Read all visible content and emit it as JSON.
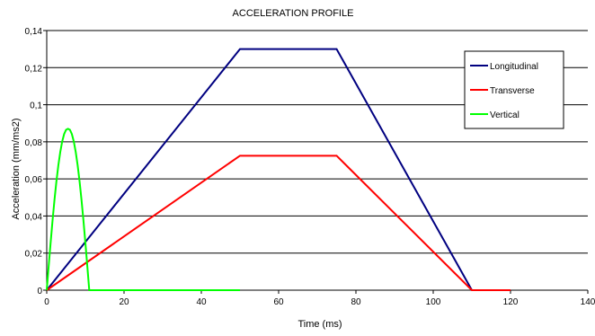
{
  "chart_data": {
    "type": "line",
    "title": "ACCELERATION PROFILE",
    "xlabel": "Time (ms)",
    "ylabel": "Acceleration (mm/ms2)",
    "xlim": [
      0,
      140
    ],
    "ylim": [
      0,
      0.14
    ],
    "xticks": [
      0,
      20,
      40,
      60,
      80,
      100,
      120,
      140
    ],
    "yticks": [
      0,
      0.02,
      0.04,
      0.06,
      0.08,
      0.1,
      0.12,
      0.14
    ],
    "x_tick_labels": [
      "0",
      "20",
      "40",
      "60",
      "80",
      "100",
      "120",
      "140"
    ],
    "y_tick_labels": [
      "0",
      "0,02",
      "0,04",
      "0,06",
      "0,08",
      "0,1",
      "0,12",
      "0,14"
    ],
    "grid": "horizontal",
    "legend_position": "top-right",
    "series": [
      {
        "name": "Longitudinal",
        "color": "#000080",
        "x": [
          0,
          50,
          75,
          110,
          120
        ],
        "y": [
          0,
          0.13,
          0.13,
          0,
          0
        ]
      },
      {
        "name": "Transverse",
        "color": "#ff0000",
        "x": [
          0,
          50,
          75,
          110,
          120
        ],
        "y": [
          0,
          0.0725,
          0.0725,
          0,
          0
        ]
      },
      {
        "name": "Vertical",
        "color": "#00ff00",
        "x": [
          0,
          0.5,
          1,
          1.5,
          2,
          2.5,
          3,
          3.5,
          4,
          4.5,
          5,
          5.5,
          6,
          6.5,
          7,
          7.5,
          8,
          8.5,
          9,
          9.5,
          10,
          10.5,
          11,
          20,
          30,
          40,
          50
        ],
        "y": [
          0,
          0.0129,
          0.0255,
          0.0375,
          0.0486,
          0.0586,
          0.0673,
          0.0745,
          0.0802,
          0.0842,
          0.0865,
          0.087,
          0.0865,
          0.0842,
          0.0802,
          0.0745,
          0.0673,
          0.0586,
          0.0486,
          0.0375,
          0.0255,
          0.0129,
          0,
          0,
          0,
          0,
          0
        ]
      }
    ]
  }
}
